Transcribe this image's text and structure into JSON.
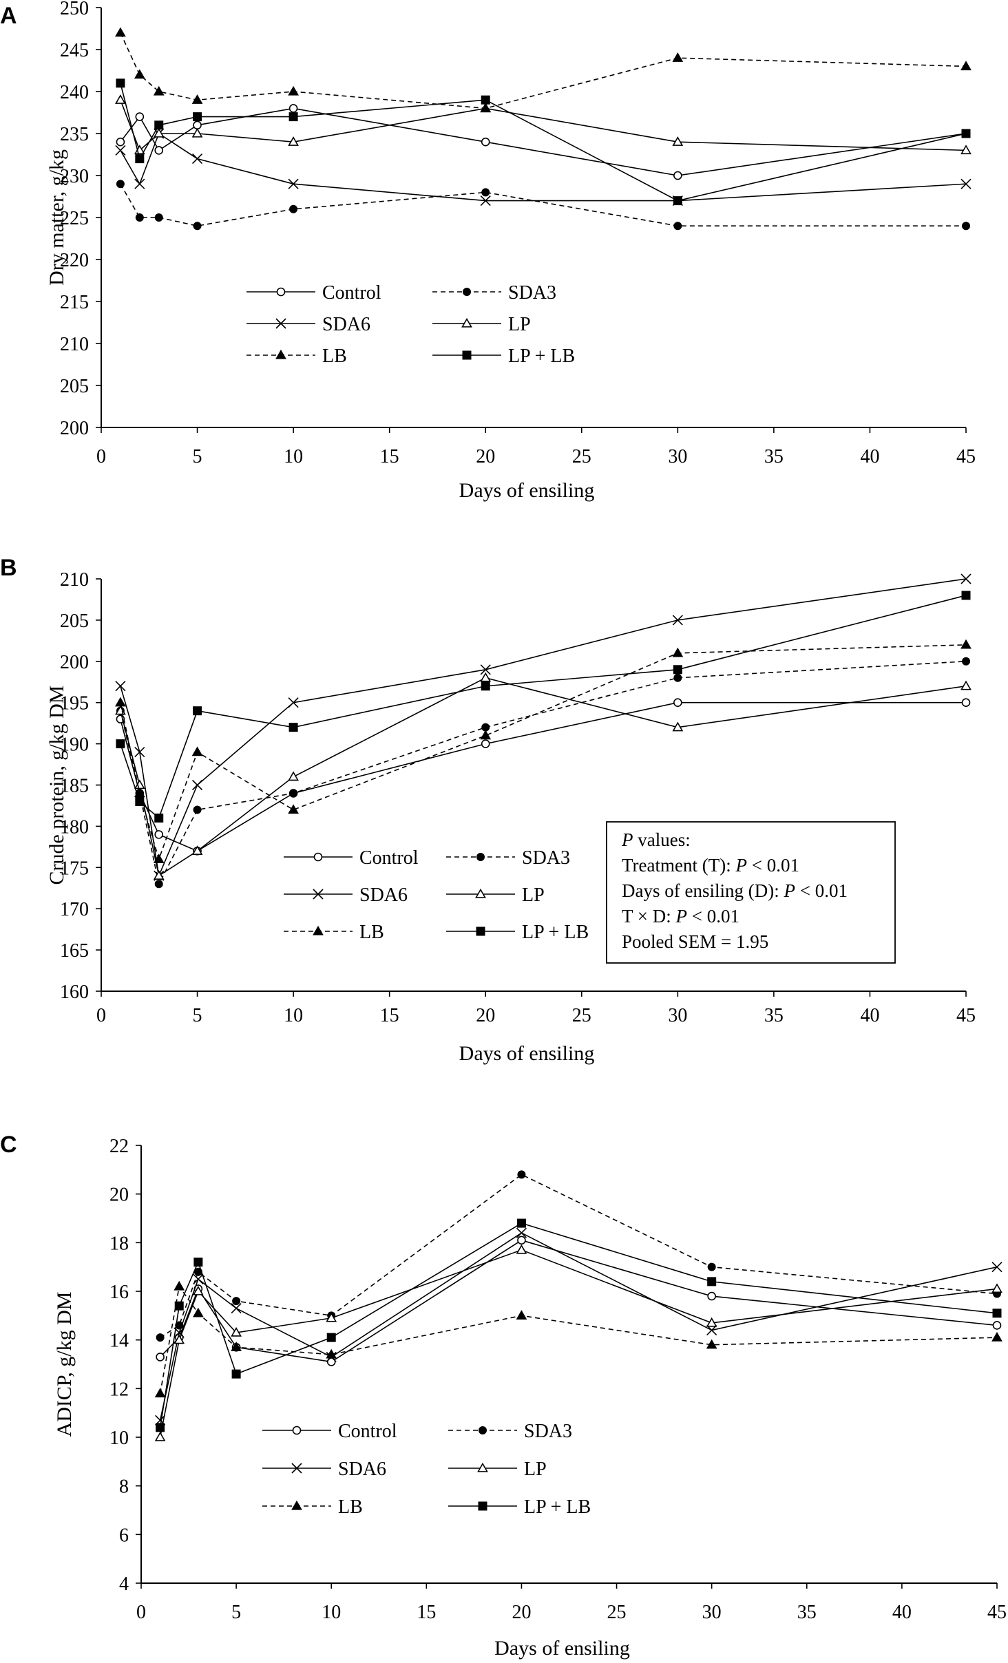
{
  "figure": {
    "panels": [
      {
        "letter": "A"
      },
      {
        "letter": "B"
      },
      {
        "letter": "C"
      }
    ]
  },
  "chart_data": [
    {
      "type": "line",
      "panel": "A",
      "title": "",
      "xlabel": "Days of ensiling",
      "ylabel": "Dry matter, g/kg",
      "xlim": [
        0,
        45
      ],
      "ylim": [
        200,
        250
      ],
      "xticks": [
        0,
        5,
        10,
        15,
        20,
        25,
        30,
        35,
        40,
        45
      ],
      "yticks": [
        200,
        205,
        210,
        215,
        220,
        225,
        230,
        235,
        240,
        245,
        250
      ],
      "x": [
        1,
        2,
        3,
        5,
        10,
        20,
        30,
        45
      ],
      "grid": false,
      "legend": "lower-left",
      "series": [
        {
          "name": "Control",
          "marker": "circle-open",
          "dash": "solid",
          "values": [
            234,
            237,
            233,
            236,
            238,
            234,
            230,
            235
          ]
        },
        {
          "name": "SDA3",
          "marker": "circle-filled",
          "dash": "dashed",
          "values": [
            229,
            225,
            225,
            224,
            226,
            228,
            224,
            224
          ]
        },
        {
          "name": "SDA6",
          "marker": "x",
          "dash": "solid",
          "values": [
            233,
            229,
            235,
            232,
            229,
            227,
            227,
            229
          ]
        },
        {
          "name": "LP",
          "marker": "triangle-open",
          "dash": "solid",
          "values": [
            239,
            233,
            235,
            235,
            234,
            238,
            234,
            233
          ]
        },
        {
          "name": "LB",
          "marker": "triangle-filled",
          "dash": "dashed",
          "values": [
            247,
            242,
            240,
            239,
            240,
            238,
            244,
            243
          ]
        },
        {
          "name": "LP + LB",
          "marker": "square-filled",
          "dash": "solid",
          "values": [
            241,
            232,
            236,
            237,
            237,
            239,
            227,
            235
          ]
        }
      ]
    },
    {
      "type": "line",
      "panel": "B",
      "title": "",
      "xlabel": "Days of ensiling",
      "ylabel": "Crude protein, g/kg DM",
      "xlim": [
        0,
        45
      ],
      "ylim": [
        160,
        210
      ],
      "xticks": [
        0,
        5,
        10,
        15,
        20,
        25,
        30,
        35,
        40,
        45
      ],
      "yticks": [
        160,
        165,
        170,
        175,
        180,
        185,
        190,
        195,
        200,
        205,
        210
      ],
      "x": [
        1,
        2,
        3,
        5,
        10,
        20,
        30,
        45
      ],
      "grid": false,
      "legend": "lower-left",
      "annotation": {
        "lines": [
          [
            "P",
            " values:"
          ],
          [
            "Treatment (T): ",
            "P",
            " < 0.01"
          ],
          [
            "Days of ensiling (D): ",
            "P",
            " < 0.01"
          ],
          [
            "T × D: ",
            "P",
            " < 0.01"
          ],
          [
            "Pooled SEM = 1.95"
          ]
        ]
      },
      "series": [
        {
          "name": "Control",
          "marker": "circle-open",
          "dash": "solid",
          "values": [
            193,
            184,
            179,
            177,
            184,
            190,
            195,
            195
          ]
        },
        {
          "name": "SDA3",
          "marker": "circle-filled",
          "dash": "dashed",
          "values": [
            194,
            184,
            173,
            182,
            184,
            192,
            198,
            200
          ]
        },
        {
          "name": "SDA6",
          "marker": "x",
          "dash": "solid",
          "values": [
            197,
            189,
            174,
            185,
            195,
            199,
            205,
            210
          ]
        },
        {
          "name": "LP",
          "marker": "triangle-open",
          "dash": "solid",
          "values": [
            194,
            185,
            174,
            177,
            186,
            198,
            192,
            197
          ]
        },
        {
          "name": "LB",
          "marker": "triangle-filled",
          "dash": "dashed",
          "values": [
            195,
            184,
            176,
            189,
            182,
            191,
            201,
            202
          ]
        },
        {
          "name": "LP + LB",
          "marker": "square-filled",
          "dash": "solid",
          "values": [
            190,
            183,
            181,
            194,
            192,
            197,
            199,
            208
          ]
        }
      ]
    },
    {
      "type": "line",
      "panel": "C",
      "title": "",
      "xlabel": "Days of ensiling",
      "ylabel": "ADICP, g/kg DM",
      "xlim": [
        0,
        45
      ],
      "ylim": [
        4,
        22
      ],
      "xticks": [
        0,
        5,
        10,
        15,
        20,
        25,
        30,
        35,
        40,
        45
      ],
      "yticks": [
        4,
        6,
        8,
        10,
        12,
        14,
        16,
        18,
        20,
        22
      ],
      "x": [
        1,
        2,
        3,
        5,
        10,
        20,
        30,
        45
      ],
      "grid": false,
      "legend": "lower-left",
      "series": [
        {
          "name": "Control",
          "marker": "circle-open",
          "dash": "solid",
          "values": [
            13.3,
            14.1,
            16.1,
            13.7,
            13.1,
            18.1,
            15.8,
            14.6
          ]
        },
        {
          "name": "SDA3",
          "marker": "circle-filled",
          "dash": "dashed",
          "values": [
            14.1,
            14.6,
            16.8,
            15.6,
            15.0,
            20.8,
            17.0,
            15.9
          ]
        },
        {
          "name": "SDA6",
          "marker": "x",
          "dash": "solid",
          "values": [
            10.7,
            14.3,
            16.5,
            15.3,
            13.3,
            18.4,
            14.4,
            17.0
          ]
        },
        {
          "name": "LP",
          "marker": "triangle-open",
          "dash": "solid",
          "values": [
            10.0,
            14.0,
            16.0,
            14.3,
            14.9,
            17.7,
            14.7,
            16.1
          ]
        },
        {
          "name": "LB",
          "marker": "triangle-filled",
          "dash": "dashed",
          "values": [
            11.8,
            16.2,
            15.1,
            13.7,
            13.4,
            15.0,
            13.8,
            14.1
          ]
        },
        {
          "name": "LP + LB",
          "marker": "square-filled",
          "dash": "solid",
          "values": [
            10.4,
            15.4,
            17.2,
            12.6,
            14.1,
            18.8,
            16.4,
            15.1
          ]
        }
      ]
    }
  ]
}
